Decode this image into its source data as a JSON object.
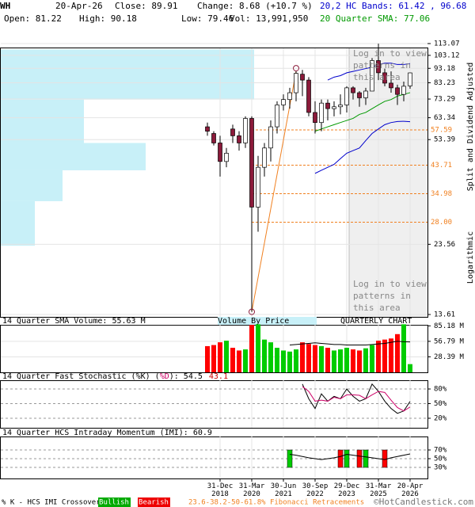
{
  "header": {
    "symbol": "WH",
    "date": "20-Apr-26",
    "close": "Close: 89.91",
    "change": "Change: 8.68 (+10.7 %)",
    "bands": "20,2 HC Bands: 61.42 , 96.68",
    "open": "Open: 81.22",
    "high": "High: 90.18",
    "low": "Low: 79.46",
    "vol": "Vol: 13,991,950",
    "sma": "20 Quarter SMA: 77.06"
  },
  "pattern_notice": "Log in to view patterns in this area",
  "footer": {
    "crossover": "% K - HCS IMI Crossover,",
    "bullish": "Bullish",
    "bearish": "Bearish",
    "fib": "23.6-38.2-50-61.8% Fibonacci Retracements",
    "credit": "©HotCandlestick.com"
  },
  "chart_data": [
    {
      "type": "candlestick",
      "log_scale": true,
      "ylabel": "Split and Dividend Adjusted",
      "scale_label": "Logarithmic",
      "open": [
        59,
        56,
        52,
        45,
        58,
        55,
        52,
        63,
        31.5,
        43,
        50,
        59,
        70,
        73,
        77,
        89,
        85,
        66,
        61,
        71,
        68,
        69,
        70,
        80,
        77,
        74,
        78,
        99,
        90,
        83,
        80,
        76,
        81.22
      ],
      "high": [
        61,
        57,
        55,
        50,
        60,
        57,
        64,
        64,
        47,
        52,
        62,
        72,
        76,
        80,
        91,
        92,
        87,
        72,
        73,
        73,
        72,
        76,
        81,
        81,
        78,
        80,
        101,
        113,
        93,
        91,
        82,
        84,
        90.18
      ],
      "low": [
        55,
        51,
        40,
        43,
        52,
        49,
        50,
        13.9,
        26,
        40,
        45,
        56,
        67,
        68,
        72,
        75,
        64,
        56,
        57,
        62,
        64,
        65,
        66,
        73,
        69,
        70,
        78,
        85,
        81,
        77,
        70,
        72,
        79.46
      ],
      "close": [
        57,
        52,
        45,
        48,
        55,
        52,
        63,
        31.5,
        43,
        50,
        59,
        70,
        73,
        77,
        89.6,
        85,
        66,
        61,
        71,
        68,
        69,
        70,
        80,
        77,
        74,
        78,
        99,
        90,
        83,
        80,
        76,
        81,
        89.91
      ],
      "up_color": "#ffffff",
      "down_color": "#8b1a3a",
      "ylim": [
        13.61,
        113.07
      ],
      "yticks": [
        113.07,
        103.12,
        93.18,
        83.23,
        73.29,
        63.34,
        53.39,
        23.56,
        13.61
      ],
      "xticks": [
        {
          "value": 2,
          "label": "31-Dec 2018"
        },
        {
          "value": 7,
          "label": "31-Mar 2020"
        },
        {
          "value": 12,
          "label": "30-Jun 2021"
        },
        {
          "value": 17,
          "label": "30-Sep 2022"
        },
        {
          "value": 22,
          "label": "29-Dec 2023"
        },
        {
          "value": 27,
          "label": "31-Mar 2025"
        },
        {
          "value": 32,
          "label": "20-Apr 2026"
        }
      ],
      "fib_levels": [
        57.59,
        43.71,
        34.98,
        {
          "value": 28,
          "label": "28.00"
        }
      ],
      "fib_color": "#f08020",
      "swing_points": [
        7,
        14
      ],
      "overlays": [
        {
          "color": "#0000cc",
          "values": [
            null,
            null,
            null,
            null,
            null,
            null,
            null,
            null,
            null,
            null,
            null,
            null,
            null,
            null,
            null,
            null,
            null,
            null,
            null,
            85,
            87,
            88,
            90,
            91,
            92,
            93,
            94,
            96,
            97,
            97,
            96,
            96,
            96.68
          ]
        },
        {
          "color": "#0000cc",
          "values": [
            null,
            null,
            null,
            null,
            null,
            null,
            null,
            null,
            null,
            null,
            null,
            null,
            null,
            null,
            null,
            null,
            null,
            41,
            42,
            43,
            44,
            46,
            48,
            49,
            50,
            53,
            56,
            58,
            60,
            61,
            61.5,
            61.6,
            61.42
          ]
        },
        {
          "color": "#009900",
          "values": [
            null,
            null,
            null,
            null,
            null,
            null,
            null,
            null,
            null,
            null,
            null,
            null,
            null,
            null,
            null,
            null,
            null,
            57,
            58,
            59,
            60,
            61,
            62,
            63,
            65,
            66,
            68,
            70,
            72,
            73,
            75,
            76,
            77.06
          ]
        }
      ],
      "volume_by_price": {
        "bins": [
          23.3,
          33,
          42,
          52,
          73,
          108
        ],
        "values": [
          43,
          78,
          183,
          105,
          320
        ],
        "xlim": [
          0,
          540
        ],
        "color": "#c8f0f8"
      }
    },
    {
      "type": "bar",
      "title": "14 Quarter SMA Volume: 55.63 M",
      "annotation": "Volume By Price",
      "chart_label": "QUARTERLY CHART",
      "values": [
        48,
        50,
        55,
        58,
        45,
        40,
        42,
        87,
        88,
        60,
        55,
        45,
        40,
        38,
        42,
        55,
        52,
        50,
        48,
        45,
        40,
        42,
        45,
        42,
        40,
        44,
        50,
        58,
        60,
        62,
        70,
        88,
        15
      ],
      "sma": [
        null,
        null,
        null,
        null,
        null,
        null,
        null,
        null,
        null,
        null,
        null,
        null,
        null,
        50,
        51,
        52,
        53,
        54,
        53,
        52,
        51,
        51,
        50,
        50,
        50,
        50,
        51,
        52,
        53,
        55,
        57,
        56,
        55.63
      ],
      "ylim": [
        0,
        90
      ],
      "yticks": [
        {
          "value": 85.18,
          "label": "85.18 M"
        },
        {
          "value": 56.79,
          "label": "56.79 M"
        },
        {
          "value": 28.39,
          "label": "28.39 M"
        }
      ],
      "up_color": "#00cc00",
      "down_color": "#ff0000"
    },
    {
      "type": "line",
      "title_parts": [
        "14 Quarter Fast Stochastic (",
        "%K",
        ") (",
        "%D",
        "): ",
        "54.5",
        "43.1"
      ],
      "series": [
        {
          "color": "#000000",
          "values": [
            null,
            null,
            null,
            null,
            null,
            null,
            null,
            null,
            null,
            null,
            null,
            null,
            null,
            null,
            null,
            90,
            60,
            40,
            70,
            55,
            65,
            60,
            80,
            65,
            55,
            60,
            90,
            75,
            55,
            40,
            30,
            35,
            54.5
          ]
        },
        {
          "color": "#cc0066",
          "values": [
            null,
            null,
            null,
            null,
            null,
            null,
            null,
            null,
            null,
            null,
            null,
            null,
            null,
            null,
            null,
            85,
            75,
            55,
            57,
            55,
            63,
            60,
            68,
            68,
            67,
            60,
            68,
            75,
            73,
            57,
            42,
            35,
            43.1
          ]
        }
      ],
      "ylim": [
        0,
        100
      ],
      "yticks": [
        {
          "value": 80,
          "label": "80%"
        },
        {
          "value": 50,
          "label": "50%"
        },
        {
          "value": 20,
          "label": "20%"
        }
      ]
    },
    {
      "type": "line",
      "title": "14 Quarter HCS Intraday Momentum (IMI): 60.9",
      "series": [
        {
          "color": "#000000",
          "values": [
            null,
            null,
            null,
            null,
            null,
            null,
            null,
            null,
            null,
            null,
            null,
            null,
            null,
            60,
            58,
            55,
            52,
            50,
            48,
            50,
            52,
            55,
            60,
            58,
            56,
            54,
            52,
            50,
            48,
            52,
            55,
            58,
            60.9
          ]
        }
      ],
      "crossovers": {
        "bullish": [
          13,
          22,
          25
        ],
        "bearish": [
          21,
          24,
          28
        ]
      },
      "ylim": [
        0,
        100
      ],
      "yticks": [
        {
          "value": 70,
          "label": "70%"
        },
        {
          "value": 50,
          "label": "50%"
        },
        {
          "value": 30,
          "label": "30%"
        }
      ]
    }
  ]
}
